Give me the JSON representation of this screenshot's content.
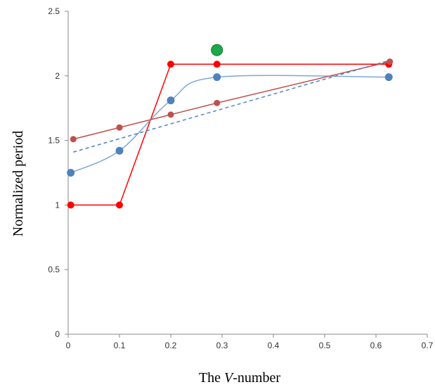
{
  "chart_data": {
    "type": "line",
    "title": "",
    "xlabel": {
      "prefix": "The ",
      "italic": "V",
      "suffix": "-number"
    },
    "ylabel": "Normalized  period",
    "xlim": [
      0,
      0.7
    ],
    "ylim": [
      0,
      2.5
    ],
    "x_ticks": [
      "0",
      "0.1",
      "0.2",
      "0.3",
      "0.4",
      "0.5",
      "0.6",
      "0.7"
    ],
    "y_ticks": [
      "0",
      "0.5",
      "1",
      "1.5",
      "2",
      "2.5"
    ],
    "grid": false,
    "legend": "none",
    "series": [
      {
        "style": "step-line",
        "color": "#ff0000",
        "x": [
          0.005,
          0.1,
          0.2,
          0.29,
          0.625
        ],
        "y": [
          1.0,
          1.0,
          2.09,
          2.09,
          2.09
        ]
      },
      {
        "style": "smooth-line",
        "color": "#4f81bd",
        "x": [
          0.005,
          0.1,
          0.2,
          0.29,
          0.625
        ],
        "y": [
          1.25,
          1.42,
          1.81,
          1.99,
          1.99
        ]
      },
      {
        "style": "line",
        "color": "#c0504d",
        "x": [
          0.01,
          0.1,
          0.2,
          0.29,
          0.627
        ],
        "y": [
          1.51,
          1.6,
          1.7,
          1.79,
          2.11
        ]
      },
      {
        "style": "dashed-trendline",
        "color": "#4f81bd",
        "x": [
          0.01,
          0.627
        ],
        "y": [
          1.41,
          2.12
        ]
      },
      {
        "style": "single-point",
        "color": "#1ea84a",
        "x": [
          0.29
        ],
        "y": [
          2.2
        ]
      }
    ]
  }
}
